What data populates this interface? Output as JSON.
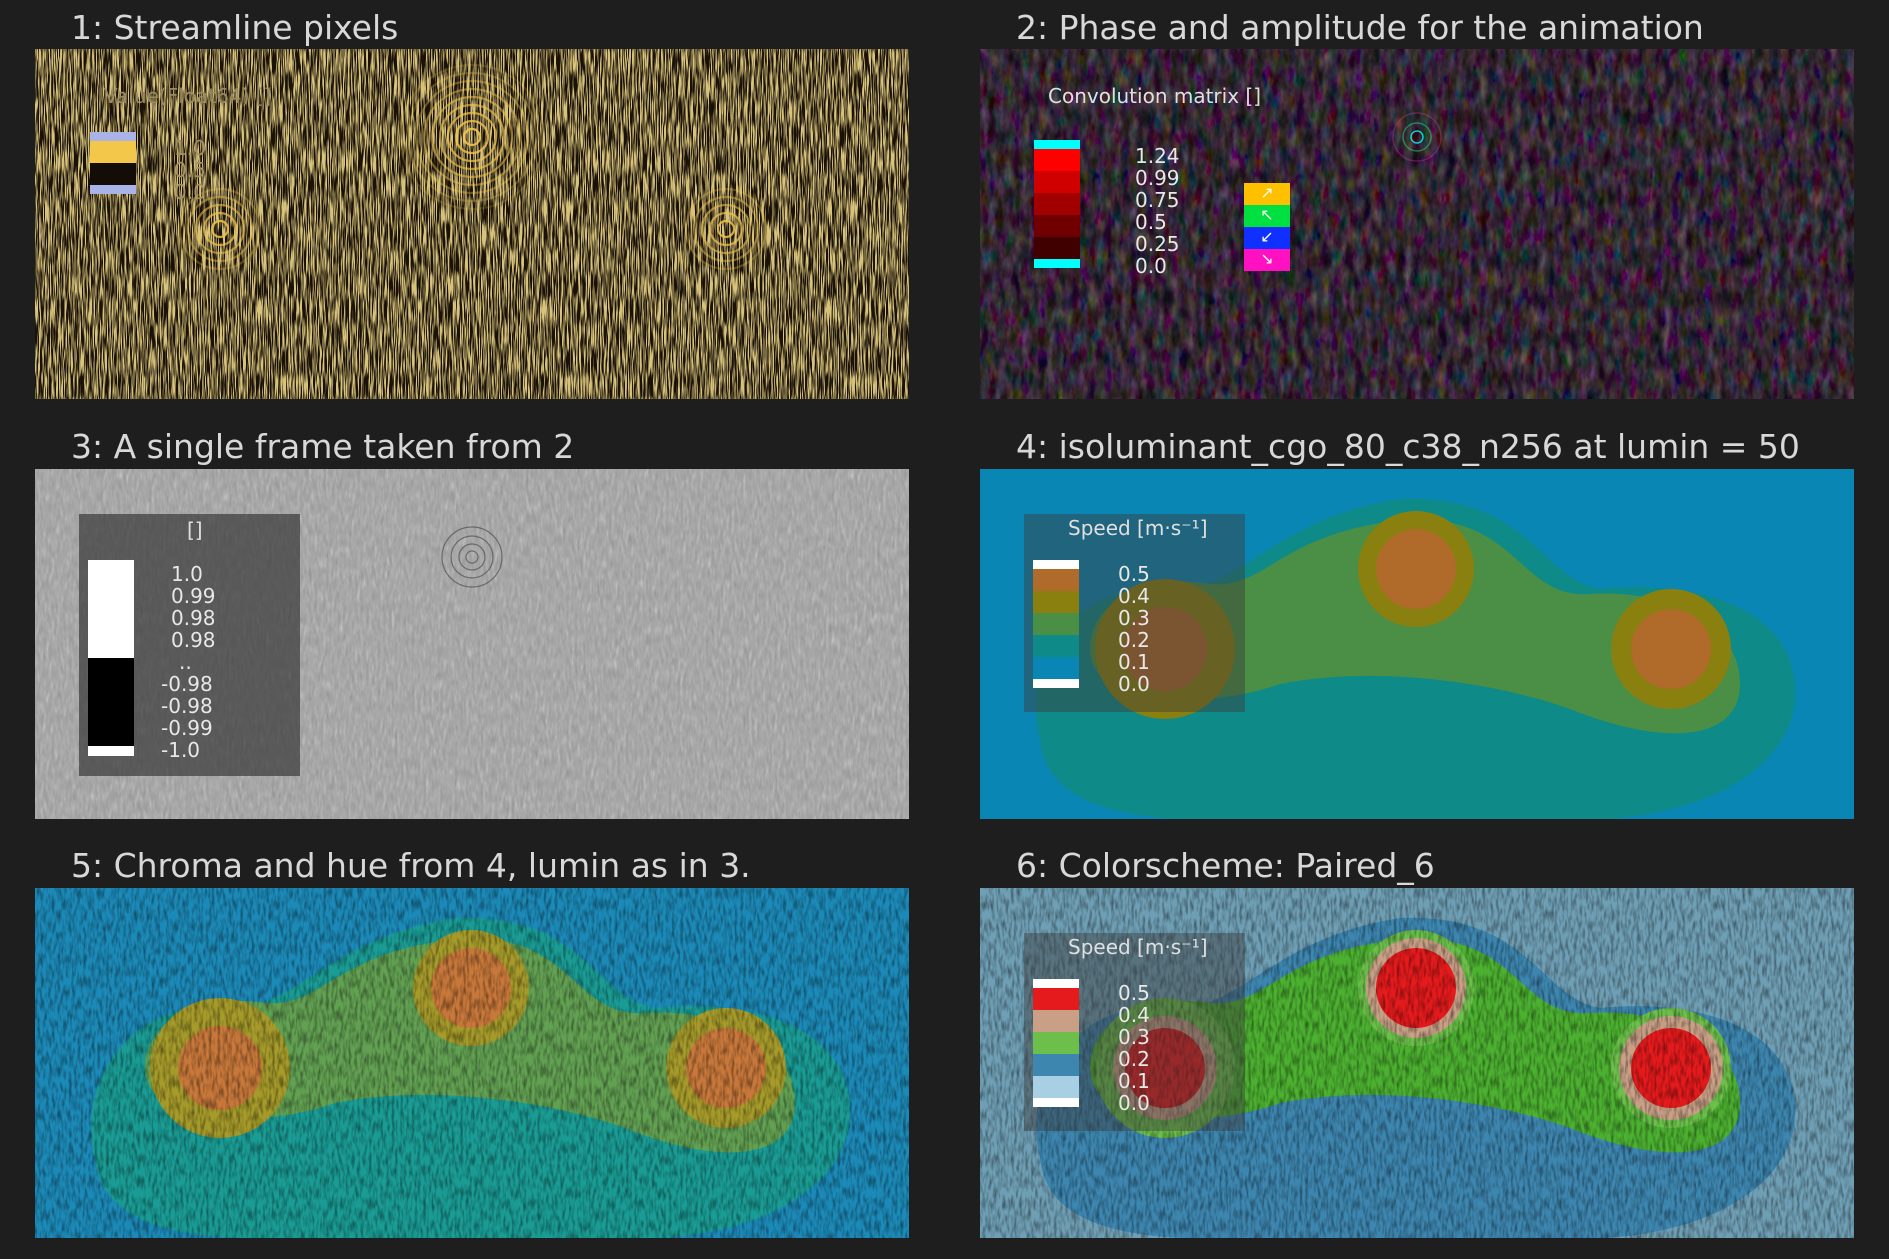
{
  "panels": [
    {
      "title": "1: Streamline pixels",
      "legend": {
        "title": "Value(Float64) []",
        "ticks": [
          "1.0",
          "0.5",
          "0.0"
        ],
        "colors": [
          "#a9b3e8",
          "#f3c84a",
          "#140c06",
          "#a9b3e8"
        ]
      }
    },
    {
      "title": "2: Phase and amplitude for the animation",
      "legend": {
        "title": "Convolution matrix []",
        "ticks": [
          "1.24",
          "0.99",
          "0.75",
          "0.5",
          "0.25",
          "0.0"
        ],
        "colors": [
          "#00ffff",
          "#ff0000",
          "#d00000",
          "#a00000",
          "#700000",
          "#400000",
          "#00ffff"
        ],
        "direction_colors": [
          "#ffc000",
          "#00e040",
          "#1030ff",
          "#ff10c0"
        ],
        "direction_arrows": [
          "↗",
          "↖",
          "↙",
          "↘"
        ]
      }
    },
    {
      "title": "3: A single frame taken from 2",
      "legend": {
        "title": "[]",
        "ticks": [
          "1.0",
          "0.99",
          "0.98",
          "0.98",
          "..",
          "-0.98",
          "-0.98",
          "-0.99",
          "-1.0"
        ],
        "colors": [
          "#ffffff",
          "#000000",
          "#ffffff"
        ]
      }
    },
    {
      "title": "4: isoluminant_cgo_80_c38_n256 at lumin = 50",
      "legend": {
        "title": "Speed [m·s⁻¹]",
        "ticks": [
          "0.5",
          "0.4",
          "0.3",
          "0.2",
          "0.1",
          "0.0"
        ],
        "colors": [
          "#ffffff",
          "#b06a2a",
          "#8a8010",
          "#4a8f45",
          "#0e8a88",
          "#0a86b4",
          "#ffffff"
        ]
      }
    },
    {
      "title": "5: Chroma and hue from 4, lumin as in 3."
    },
    {
      "title": "6: Colorscheme: Paired_6",
      "legend": {
        "title": "Speed [m·s⁻¹]",
        "ticks": [
          "0.5",
          "0.4",
          "0.3",
          "0.2",
          "0.1",
          "0.0"
        ],
        "colors": [
          "#ffffff",
          "#e41a1c",
          "#c9a086",
          "#6bbf4a",
          "#3d86b0",
          "#a8cfe3",
          "#ffffff"
        ]
      }
    }
  ]
}
